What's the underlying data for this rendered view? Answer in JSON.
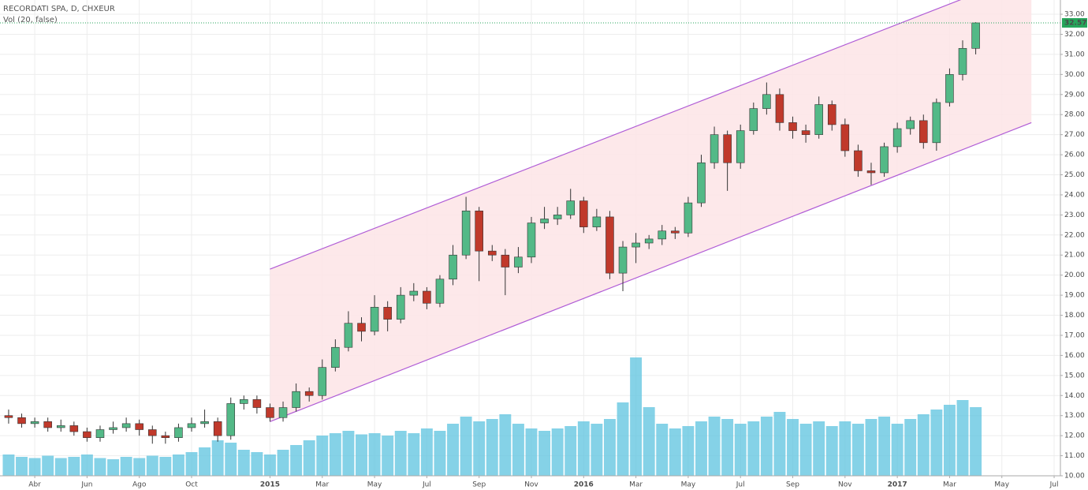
{
  "chart_data": {
    "type": "candlestick",
    "title": "RECORDATI SPA, D, CHXEUR",
    "subtitle": "Vol (20, false)",
    "x": [
      2,
      2.5,
      3,
      3.5,
      4,
      4.5,
      5,
      5.5,
      6,
      6.5,
      7,
      7.5,
      8,
      8.5,
      9,
      9.5,
      10,
      10.5,
      11,
      11.5,
      12,
      12.5,
      13,
      13.5,
      14,
      14.5,
      15,
      15.5,
      16,
      16.5,
      17,
      17.5,
      18,
      18.5,
      19,
      19.5,
      20,
      20.5,
      21,
      21.5,
      22,
      22.5,
      23,
      23.5,
      24,
      24.5,
      25,
      25.5,
      26,
      26.5,
      27,
      27.5,
      28,
      28.5,
      29,
      29.5,
      30,
      30.5,
      31,
      31.5,
      32,
      32.5,
      33,
      33.5,
      34,
      34.5,
      35,
      35.5,
      36,
      36.5,
      37,
      37.5,
      38,
      38.5,
      39
    ],
    "open": [
      13.0,
      12.9,
      12.6,
      12.7,
      12.4,
      12.5,
      12.2,
      11.9,
      12.3,
      12.4,
      12.6,
      12.3,
      12.0,
      11.9,
      12.4,
      12.6,
      12.7,
      12.0,
      13.6,
      13.8,
      13.4,
      12.9,
      13.4,
      14.2,
      14.0,
      15.4,
      16.4,
      17.6,
      17.2,
      18.4,
      17.8,
      19.0,
      19.2,
      18.6,
      19.8,
      21.0,
      23.2,
      21.2,
      21.0,
      20.4,
      20.9,
      22.6,
      22.8,
      23.0,
      23.7,
      22.4,
      22.9,
      20.1,
      21.4,
      21.6,
      21.8,
      22.2,
      22.1,
      23.6,
      25.6,
      27.0,
      25.6,
      27.2,
      28.3,
      29.0,
      27.6,
      27.2,
      27.0,
      28.5,
      27.5,
      26.2,
      25.2,
      25.1,
      26.4,
      27.3,
      27.7,
      26.6,
      28.6,
      30.0,
      31.3
    ],
    "high": [
      13.3,
      13.1,
      12.9,
      12.9,
      12.8,
      12.7,
      12.4,
      12.5,
      12.7,
      12.9,
      12.8,
      12.5,
      12.2,
      12.6,
      12.9,
      13.3,
      12.9,
      13.9,
      14.0,
      14.0,
      13.6,
      13.7,
      14.6,
      14.4,
      15.8,
      16.8,
      18.2,
      17.9,
      19.0,
      18.7,
      19.4,
      19.6,
      19.4,
      20.0,
      21.5,
      23.9,
      23.4,
      21.5,
      21.3,
      21.4,
      22.9,
      23.4,
      23.4,
      24.3,
      23.9,
      23.3,
      23.2,
      21.7,
      22.1,
      22.0,
      22.5,
      22.4,
      23.9,
      26.0,
      27.4,
      27.2,
      27.5,
      28.6,
      29.6,
      29.3,
      27.9,
      27.5,
      28.9,
      28.7,
      27.8,
      26.5,
      25.6,
      26.6,
      27.6,
      27.9,
      28.0,
      28.8,
      30.3,
      31.7,
      32.6
    ],
    "low": [
      12.6,
      12.4,
      12.4,
      12.2,
      12.2,
      12.0,
      11.7,
      11.7,
      12.1,
      12.2,
      12.0,
      11.6,
      11.6,
      11.7,
      12.2,
      12.4,
      11.7,
      11.8,
      13.3,
      13.1,
      12.7,
      12.7,
      13.2,
      13.7,
      13.8,
      15.2,
      16.2,
      16.7,
      17.0,
      17.2,
      17.6,
      18.7,
      18.3,
      18.4,
      19.5,
      20.8,
      19.7,
      20.7,
      19.0,
      20.1,
      20.6,
      22.3,
      22.5,
      22.8,
      22.1,
      22.2,
      19.8,
      19.2,
      20.6,
      21.3,
      21.5,
      21.8,
      21.9,
      23.4,
      25.3,
      24.2,
      25.3,
      27.0,
      28.0,
      27.2,
      26.8,
      26.6,
      26.8,
      27.2,
      25.9,
      24.9,
      24.5,
      24.9,
      26.1,
      27.0,
      26.3,
      26.2,
      28.4,
      29.7,
      31.0
    ],
    "close": [
      12.9,
      12.6,
      12.7,
      12.4,
      12.5,
      12.2,
      11.9,
      12.3,
      12.4,
      12.6,
      12.3,
      12.0,
      11.9,
      12.4,
      12.6,
      12.7,
      12.0,
      13.6,
      13.8,
      13.4,
      12.9,
      13.4,
      14.2,
      14.0,
      15.4,
      16.4,
      17.6,
      17.2,
      18.4,
      17.8,
      19.0,
      19.2,
      18.6,
      19.8,
      21.0,
      23.2,
      21.2,
      21.0,
      20.4,
      20.9,
      22.6,
      22.8,
      23.0,
      23.7,
      22.4,
      22.9,
      20.1,
      21.4,
      21.6,
      21.8,
      22.2,
      22.1,
      23.6,
      25.6,
      27.0,
      25.6,
      27.2,
      28.3,
      29.0,
      27.6,
      27.2,
      27.0,
      28.5,
      27.5,
      26.2,
      25.2,
      25.1,
      26.4,
      27.3,
      27.7,
      26.6,
      28.6,
      30.0,
      31.3,
      32.57
    ],
    "volume": [
      18,
      16,
      15,
      17,
      15,
      16,
      18,
      15,
      14,
      16,
      15,
      17,
      16,
      18,
      20,
      24,
      30,
      28,
      22,
      20,
      18,
      22,
      26,
      30,
      34,
      36,
      38,
      35,
      36,
      34,
      38,
      36,
      40,
      38,
      44,
      50,
      46,
      48,
      52,
      44,
      40,
      38,
      40,
      42,
      46,
      44,
      48,
      62,
      100,
      58,
      44,
      40,
      42,
      46,
      50,
      48,
      44,
      46,
      50,
      54,
      48,
      44,
      46,
      42,
      46,
      44,
      48,
      50,
      44,
      48,
      52,
      56,
      60,
      64,
      58
    ],
    "up_color": "#53b987",
    "down_color": "#c0392b",
    "volume_color": "#5cc3df",
    "last_price": 32.57,
    "last_price_color": "#26a65b",
    "channel": {
      "x": [
        12,
        41.13
      ],
      "upper": [
        20.3,
        35.1
      ],
      "lower": [
        12.7,
        27.6
      ],
      "color": "#b05cd6",
      "fill": "#fde4e6"
    },
    "xlim": [
      1.67,
      42.24
    ],
    "xticks": [
      {
        "value": 3,
        "label": "Abr"
      },
      {
        "value": 5,
        "label": "Jun"
      },
      {
        "value": 7,
        "label": "Ago"
      },
      {
        "value": 9,
        "label": "Oct"
      },
      {
        "value": 12,
        "label": "2015"
      },
      {
        "value": 14,
        "label": "Mar"
      },
      {
        "value": 16,
        "label": "May"
      },
      {
        "value": 18,
        "label": "Jul"
      },
      {
        "value": 20,
        "label": "Sep"
      },
      {
        "value": 22,
        "label": "Nov"
      },
      {
        "value": 24,
        "label": "2016"
      },
      {
        "value": 26,
        "label": "Mar"
      },
      {
        "value": 28,
        "label": "May"
      },
      {
        "value": 30,
        "label": "Jul"
      },
      {
        "value": 32,
        "label": "Sep"
      },
      {
        "value": 34,
        "label": "Nov"
      },
      {
        "value": 36,
        "label": "2017"
      },
      {
        "value": 38,
        "label": "Mar"
      },
      {
        "value": 40,
        "label": "May"
      },
      {
        "value": 42,
        "label": "Jul"
      }
    ],
    "ylim": [
      10,
      33.71
    ],
    "yticks": [
      {
        "value": 10,
        "label": "10.00"
      },
      {
        "value": 11,
        "label": "11.00"
      },
      {
        "value": 12,
        "label": "12.00"
      },
      {
        "value": 13,
        "label": "13.00"
      },
      {
        "value": 14,
        "label": "14.00"
      },
      {
        "value": 15,
        "label": "15.00"
      },
      {
        "value": 16,
        "label": "16.00"
      },
      {
        "value": 17,
        "label": "17.00"
      },
      {
        "value": 18,
        "label": "18.00"
      },
      {
        "value": 19,
        "label": "19.00"
      },
      {
        "value": 20,
        "label": "20.00"
      },
      {
        "value": 21,
        "label": "21.00"
      },
      {
        "value": 22,
        "label": "22.00"
      },
      {
        "value": 23,
        "label": "23.00"
      },
      {
        "value": 24,
        "label": "24.00"
      },
      {
        "value": 25,
        "label": "25.00"
      },
      {
        "value": 26,
        "label": "26.00"
      },
      {
        "value": 27,
        "label": "27.00"
      },
      {
        "value": 28,
        "label": "28.00"
      },
      {
        "value": 29,
        "label": "29.00"
      },
      {
        "value": 30,
        "label": "30.00"
      },
      {
        "value": 31,
        "label": "31.00"
      },
      {
        "value": 32,
        "label": "32.00"
      },
      {
        "value": 33,
        "label": "33.00"
      }
    ],
    "grid": true
  }
}
